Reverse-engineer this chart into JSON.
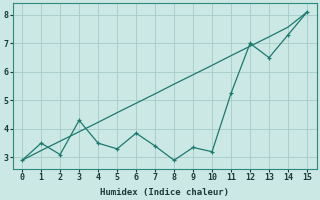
{
  "x": [
    0,
    1,
    2,
    3,
    4,
    5,
    6,
    7,
    8,
    9,
    10,
    11,
    12,
    13,
    14,
    15
  ],
  "line1_y": [
    2.9,
    3.24,
    3.57,
    3.9,
    4.23,
    4.57,
    4.9,
    5.23,
    5.57,
    5.9,
    6.23,
    6.57,
    6.9,
    7.23,
    7.57,
    8.1
  ],
  "line2_y": [
    2.9,
    3.5,
    3.1,
    4.3,
    3.5,
    3.3,
    3.85,
    3.4,
    2.9,
    3.35,
    3.2,
    5.25,
    7.0,
    6.5,
    7.3,
    8.1
  ],
  "color": "#1a7a6e",
  "bg_color": "#cce8e4",
  "grid_color": "#aacfcb",
  "xlabel": "Humidex (Indice chaleur)",
  "ylim": [
    2.6,
    8.4
  ],
  "xlim": [
    -0.5,
    15.5
  ],
  "yticks": [
    3,
    4,
    5,
    6,
    7,
    8
  ],
  "xticks": [
    0,
    1,
    2,
    3,
    4,
    5,
    6,
    7,
    8,
    9,
    10,
    11,
    12,
    13,
    14,
    15
  ]
}
